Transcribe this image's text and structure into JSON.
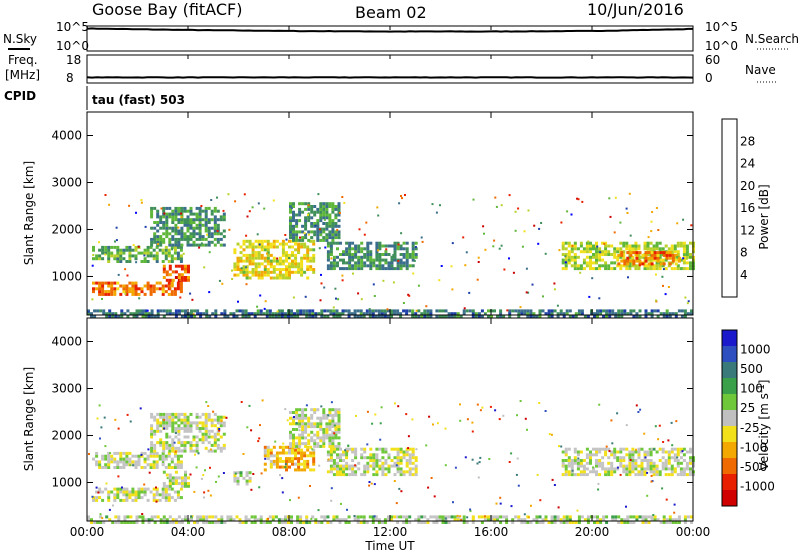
{
  "header": {
    "station": "Goose Bay (fitACF)",
    "beam": "Beam 02",
    "date": "10/Jun/2016"
  },
  "strips": {
    "nsky_label": "N.Sky",
    "nsky_ticks": [
      "10^5",
      "10^0"
    ],
    "nsearch_label": "N.Search",
    "nsearch_ticks": [
      "10^5",
      "10^0"
    ],
    "freq_label": "Freq.",
    "freq_unit": "[MHz]",
    "freq_ticks": [
      "18",
      "8"
    ],
    "nave_label": "Nave",
    "nave_ticks": [
      "60",
      "0"
    ],
    "cpid_label": "CPID",
    "cpid_value": "tau (fast) 503"
  },
  "axes": {
    "ylabel": "Slant Range [km]",
    "xlabel": "Time UT",
    "y_ticks": [
      "1000",
      "2000",
      "3000",
      "4000"
    ],
    "x_ticks": [
      "00:00",
      "04:00",
      "08:00",
      "12:00",
      "16:00",
      "20:00",
      "00:00"
    ]
  },
  "power_scale": {
    "label": "Power [dB]",
    "ticks": [
      "4",
      "8",
      "12",
      "16",
      "20",
      "24",
      "28"
    ],
    "colors": [
      "#0000ff",
      "#1f3fa8",
      "#3a6e8c",
      "#3f8f5a",
      "#5fb73a",
      "#b8d12a",
      "#f2e01b",
      "#f2a800",
      "#ef6a00",
      "#e82000",
      "#cc0000"
    ]
  },
  "velocity_scale": {
    "label": "Velocity [m s",
    "label_sup": "-1",
    "label_end": "]",
    "ticks": [
      "1000",
      "500",
      "100",
      "25",
      "-25",
      "-100",
      "-500",
      "-1000"
    ],
    "colors": [
      "#1a1acc",
      "#2e4fbf",
      "#3a7a7a",
      "#3aa04a",
      "#6fc83a",
      "#c0c0c0",
      "#f2e01b",
      "#f2a800",
      "#ef6a00",
      "#e82000",
      "#d00000"
    ]
  },
  "chart_data": [
    {
      "type": "line",
      "title": "N.Sky",
      "x": [
        "00:00",
        "04:00",
        "08:00",
        "12:00",
        "16:00",
        "20:00",
        "24:00"
      ],
      "values": [
        4.5,
        4.2,
        4.0,
        3.9,
        3.9,
        4.0,
        4.4
      ],
      "ylim": [
        0,
        5
      ]
    },
    {
      "type": "line",
      "title": "Freq.",
      "x": [
        "00:00",
        "04:00",
        "08:00",
        "12:00",
        "16:00",
        "20:00",
        "24:00"
      ],
      "values": [
        10,
        10,
        10,
        10,
        10,
        10,
        10
      ],
      "ylim": [
        8,
        18
      ]
    },
    {
      "type": "heatmap",
      "title": "Power [dB]",
      "xlabel": "Time UT",
      "ylabel": "Slant Range [km]",
      "xlim": [
        0,
        24
      ],
      "ylim": [
        180,
        4500
      ],
      "clim": [
        0,
        32
      ],
      "bands": [
        {
          "t0": 0.2,
          "t1": 3.7,
          "r0": 650,
          "r1": 950,
          "v": 24
        },
        {
          "t0": 0.2,
          "t1": 3.7,
          "r0": 1350,
          "r1": 1700,
          "v": 12
        },
        {
          "t0": 3.0,
          "t1": 4.0,
          "r0": 950,
          "r1": 1300,
          "v": 26
        },
        {
          "t0": 2.5,
          "t1": 5.5,
          "r0": 1700,
          "r1": 2500,
          "v": 10
        },
        {
          "t0": 5.8,
          "t1": 9.0,
          "r0": 1000,
          "r1": 1800,
          "v": 18
        },
        {
          "t0": 8.0,
          "t1": 10.0,
          "r0": 1800,
          "r1": 2600,
          "v": 10
        },
        {
          "t0": 9.5,
          "t1": 13.0,
          "r0": 1200,
          "r1": 1800,
          "v": 10
        },
        {
          "t0": 18.8,
          "t1": 24.0,
          "r0": 1200,
          "r1": 1800,
          "v": 16
        },
        {
          "t0": 21.0,
          "t1": 23.5,
          "r0": 1300,
          "r1": 1600,
          "v": 24
        },
        {
          "t0": 0.0,
          "t1": 24.0,
          "r0": 180,
          "r1": 350,
          "v": 8
        }
      ]
    },
    {
      "type": "heatmap",
      "title": "Velocity [m s-1]",
      "xlabel": "Time UT",
      "ylabel": "Slant Range [km]",
      "xlim": [
        0,
        24
      ],
      "ylim": [
        180,
        4500
      ],
      "clim": [
        -1000,
        1000
      ],
      "bands": [
        {
          "t0": 0.2,
          "t1": 3.7,
          "r0": 650,
          "r1": 950,
          "v": 0
        },
        {
          "t0": 0.2,
          "t1": 3.7,
          "r0": 1350,
          "r1": 1700,
          "v": 0
        },
        {
          "t0": 3.0,
          "t1": 4.0,
          "r0": 950,
          "r1": 1300,
          "v": 0
        },
        {
          "t0": 2.5,
          "t1": 5.5,
          "r0": 1700,
          "r1": 2500,
          "v": 0
        },
        {
          "t0": 5.8,
          "t1": 6.5,
          "r0": 1000,
          "r1": 1300,
          "v": 80
        },
        {
          "t0": 7.0,
          "t1": 9.0,
          "r0": 1300,
          "r1": 1800,
          "v": -300
        },
        {
          "t0": 8.0,
          "t1": 10.0,
          "r0": 1800,
          "r1": 2600,
          "v": 0
        },
        {
          "t0": 9.5,
          "t1": 13.0,
          "r0": 1200,
          "r1": 1800,
          "v": 0
        },
        {
          "t0": 18.8,
          "t1": 24.0,
          "r0": 1200,
          "r1": 1800,
          "v": 0
        },
        {
          "t0": 0.0,
          "t1": 24.0,
          "r0": 180,
          "r1": 350,
          "v": 50
        }
      ]
    }
  ]
}
